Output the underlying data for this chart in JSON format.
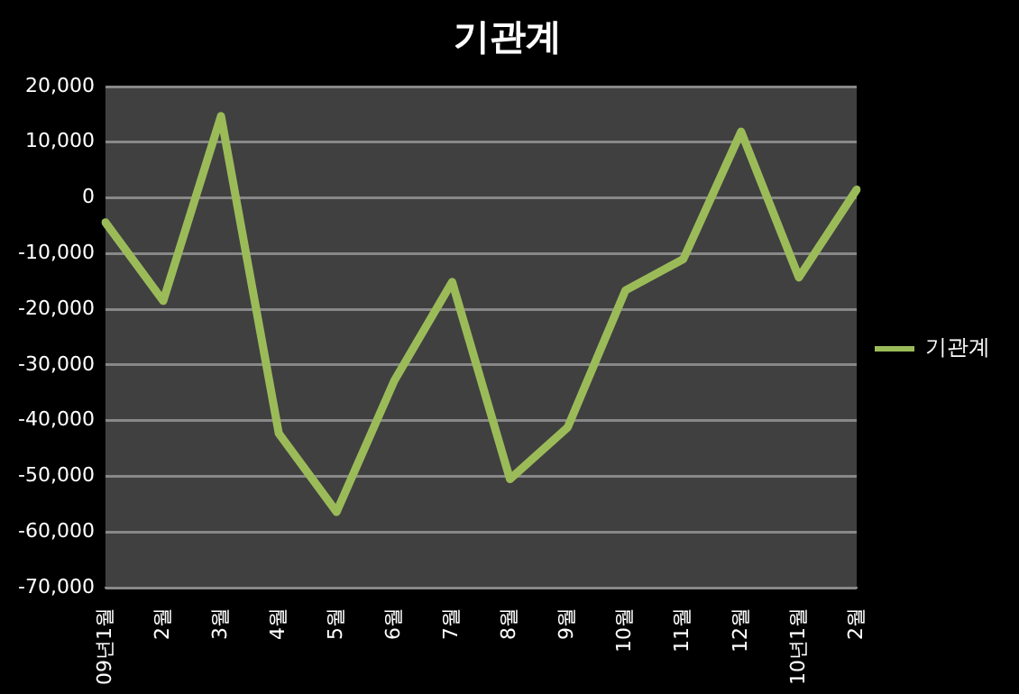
{
  "chart_data": {
    "type": "line",
    "title": "기관계",
    "categories": [
      "09년1월",
      "2월",
      "3월",
      "4월",
      "5월",
      "6월",
      "7월",
      "8월",
      "9월",
      "10월",
      "11월",
      "12월",
      "10년1월",
      "2월"
    ],
    "series": [
      {
        "name": "기관계",
        "color": "#9bbb59",
        "values": [
          -4400,
          -18500,
          14700,
          -42300,
          -56400,
          -32800,
          -15100,
          -50500,
          -41200,
          -16600,
          -11000,
          11900,
          -14300,
          1500
        ]
      }
    ],
    "ylim": [
      -70000,
      20000
    ],
    "yticks": [
      {
        "value": -70000,
        "label": "-70,000"
      },
      {
        "value": -60000,
        "label": "-60,000"
      },
      {
        "value": -50000,
        "label": "-50,000"
      },
      {
        "value": -40000,
        "label": "-40,000"
      },
      {
        "value": -30000,
        "label": "-30,000"
      },
      {
        "value": -20000,
        "label": "-20,000"
      },
      {
        "value": -10000,
        "label": "-10,000"
      },
      {
        "value": 0,
        "label": "0"
      },
      {
        "value": 10000,
        "label": "10,000"
      },
      {
        "value": 20000,
        "label": "20,000"
      }
    ],
    "grid": "y",
    "legend": "right",
    "marker": "none",
    "line_style": "solid"
  }
}
